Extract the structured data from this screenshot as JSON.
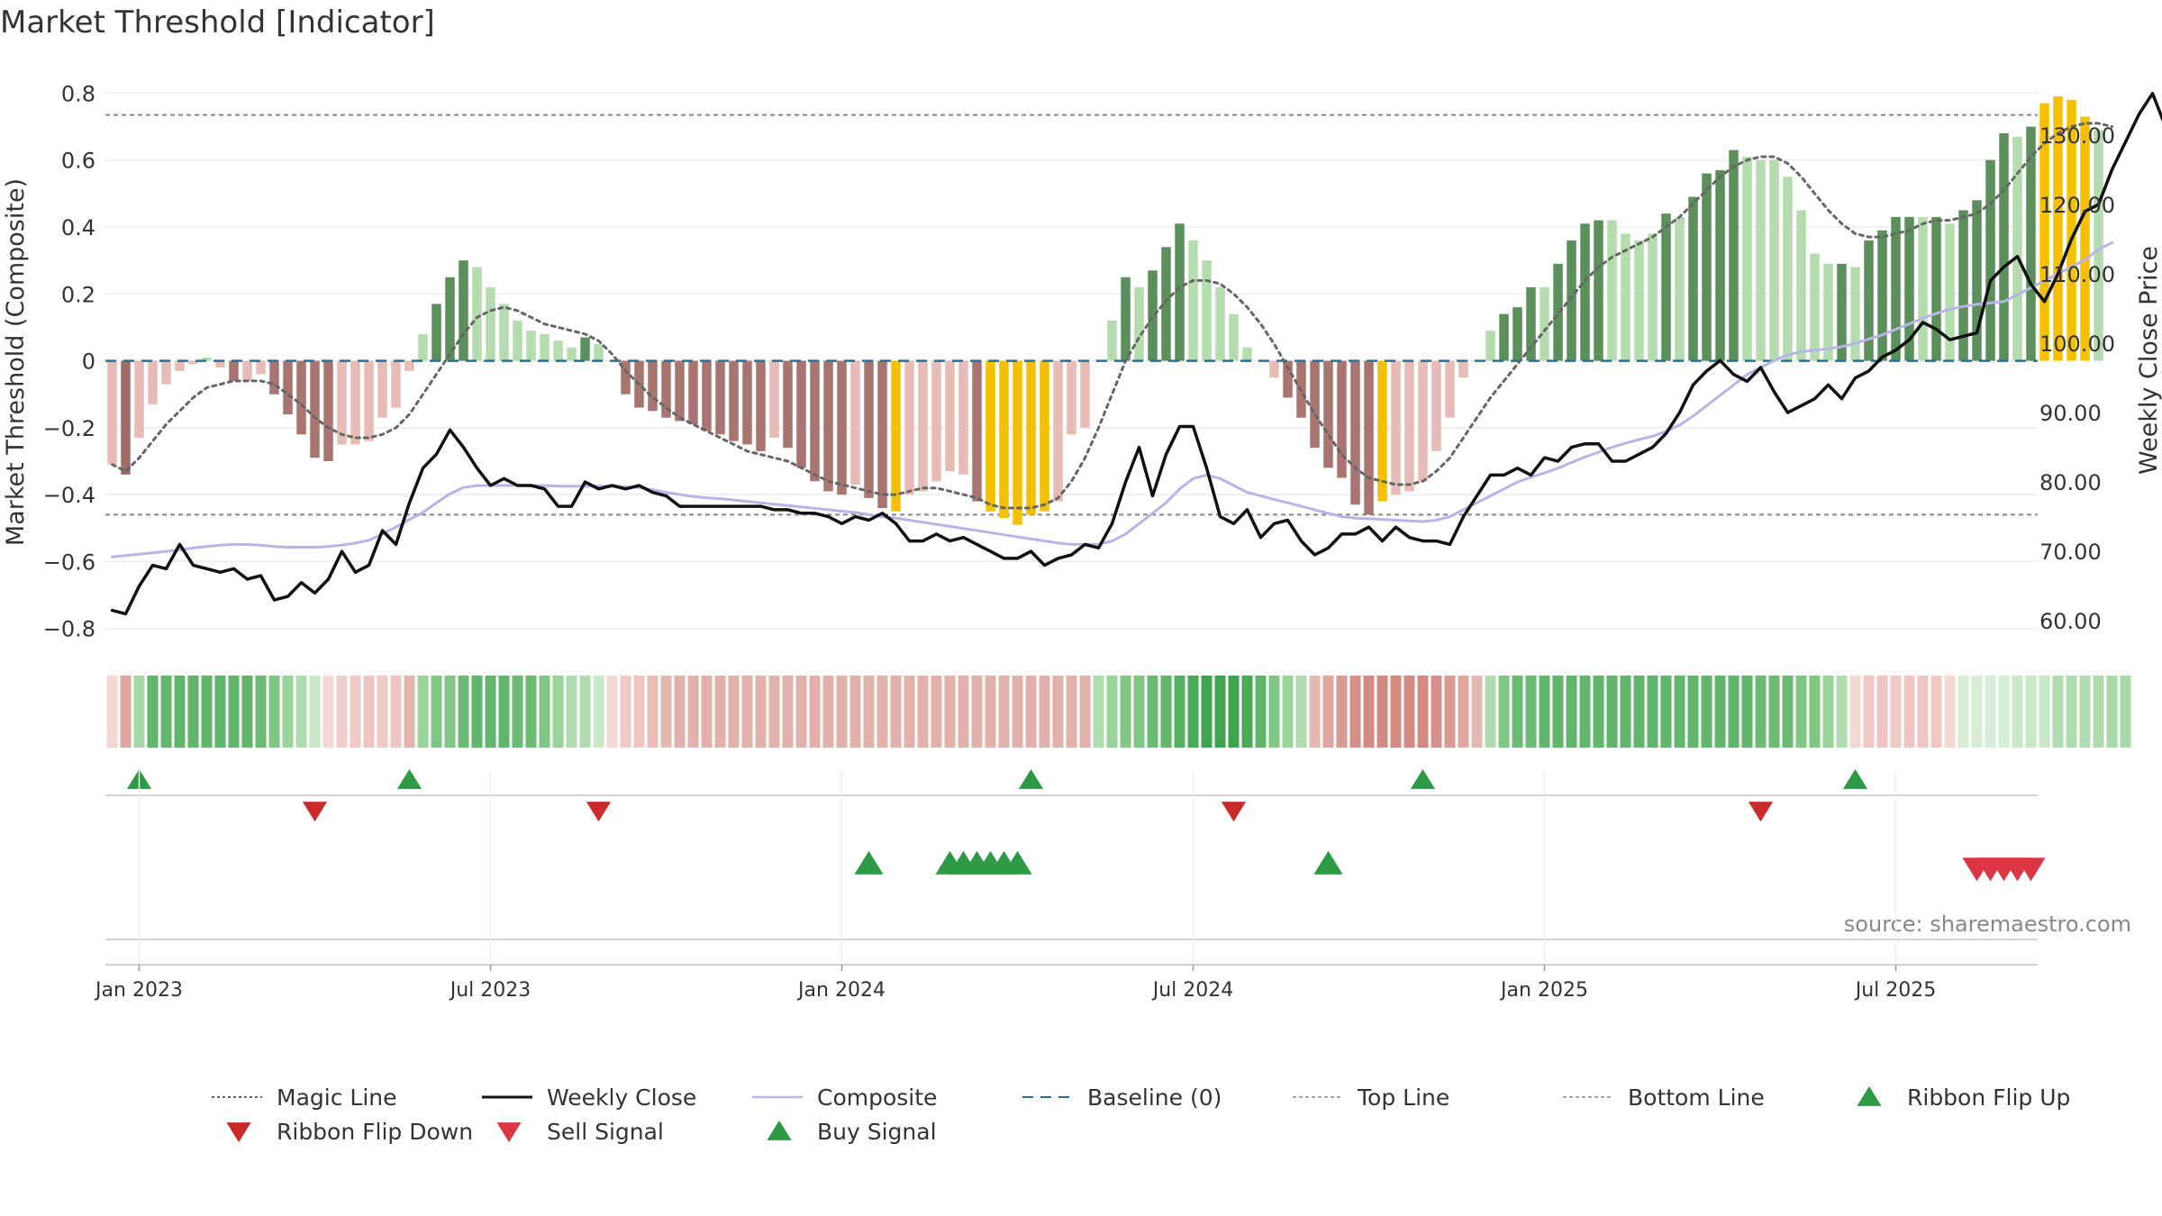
{
  "chart_data": {
    "type": "bar",
    "title": "Market Threshold [Indicator]",
    "ylabel_left": "Market Threshold (Composite)",
    "ylabel_right": "Weekly Close Price",
    "source": "source: sharemaestro.com",
    "xlabel": "",
    "ylim_left": [
      -0.86,
      0.82
    ],
    "ylim_right": [
      56.0,
      137.0
    ],
    "left_ticks": [
      {
        "v": 0.8,
        "label": "0.8"
      },
      {
        "v": 0.6,
        "label": "0.6"
      },
      {
        "v": 0.4,
        "label": "0.4"
      },
      {
        "v": 0.2,
        "label": "0.2"
      },
      {
        "v": 0.0,
        "label": "0"
      },
      {
        "v": -0.2,
        "label": "−0.2"
      },
      {
        "v": -0.4,
        "label": "−0.4"
      },
      {
        "v": -0.6,
        "label": "−0.6"
      },
      {
        "v": -0.8,
        "label": "−0.8"
      }
    ],
    "right_ticks": [
      {
        "v": 130,
        "label": "130.00"
      },
      {
        "v": 120,
        "label": "120.00"
      },
      {
        "v": 110,
        "label": "110.00"
      },
      {
        "v": 100,
        "label": "100.00"
      },
      {
        "v": 90,
        "label": "90.00"
      },
      {
        "v": 80,
        "label": "80.00"
      },
      {
        "v": 70,
        "label": "70.00"
      },
      {
        "v": 60,
        "label": "60.00"
      }
    ],
    "x_ticks": [
      {
        "week": 2,
        "label": "Jan 2023"
      },
      {
        "week": 28,
        "label": "Jul 2023"
      },
      {
        "week": 54,
        "label": "Jan 2024"
      },
      {
        "week": 80,
        "label": "Jul 2024"
      },
      {
        "week": 106,
        "label": "Jan 2025"
      },
      {
        "week": 132,
        "label": "Jul 2025"
      }
    ],
    "top_line": 0.735,
    "bottom_line": -0.46,
    "baseline": 0,
    "week_count": 143,
    "bar_values": [
      -0.31,
      -0.34,
      -0.23,
      -0.13,
      -0.07,
      -0.03,
      -0.01,
      0.01,
      -0.02,
      -0.06,
      -0.06,
      -0.04,
      -0.1,
      -0.16,
      -0.22,
      -0.29,
      -0.3,
      -0.25,
      -0.25,
      -0.24,
      -0.17,
      -0.14,
      -0.03,
      0.08,
      0.17,
      0.25,
      0.3,
      0.28,
      0.22,
      0.17,
      0.12,
      0.09,
      0.08,
      0.06,
      0.04,
      0.07,
      0.05,
      0.0,
      -0.1,
      -0.14,
      -0.15,
      -0.17,
      -0.18,
      -0.19,
      -0.21,
      -0.22,
      -0.24,
      -0.25,
      -0.27,
      -0.23,
      -0.26,
      -0.32,
      -0.36,
      -0.39,
      -0.4,
      -0.37,
      -0.41,
      -0.44,
      -0.45,
      -0.4,
      -0.39,
      -0.36,
      -0.33,
      -0.34,
      -0.42,
      -0.45,
      -0.47,
      -0.49,
      -0.46,
      -0.45,
      -0.42,
      -0.22,
      -0.2,
      0.0,
      0.12,
      0.25,
      0.22,
      0.27,
      0.34,
      0.41,
      0.36,
      0.3,
      0.22,
      0.14,
      0.04,
      0.0,
      -0.05,
      -0.11,
      -0.17,
      -0.26,
      -0.32,
      -0.35,
      -0.43,
      -0.46,
      -0.42,
      -0.4,
      -0.39,
      -0.36,
      -0.27,
      -0.17,
      -0.05,
      0.0,
      0.09,
      0.14,
      0.16,
      0.22,
      0.22,
      0.29,
      0.36,
      0.41,
      0.42,
      0.42,
      0.38,
      0.36,
      0.38,
      0.44,
      0.43,
      0.49,
      0.56,
      0.57,
      0.63,
      0.61,
      0.6,
      0.6,
      0.55,
      0.45,
      0.32,
      0.29,
      0.29,
      0.28,
      0.36,
      0.39,
      0.43,
      0.43,
      0.43,
      0.43,
      0.41,
      0.45,
      0.48,
      0.6,
      0.68,
      0.67,
      0.7,
      0.77,
      0.79,
      0.78,
      0.73,
      0.69
    ],
    "bar_colors": [
      "#e8bcb6",
      "#9e6b66",
      "#e8bcb6",
      "#e8bcb6",
      "#e8bcb6",
      "#e8bcb6",
      "#e8bcb6",
      "#b5dcae",
      "#e8bcb6",
      "#a87570",
      "#e8bcb6",
      "#e8bcb6",
      "#a87570",
      "#a87570",
      "#a87570",
      "#a87570",
      "#a87570",
      "#e8bcb6",
      "#e8bcb6",
      "#e8bcb6",
      "#e8bcb6",
      "#e8bcb6",
      "#e8bcb6",
      "#b5dcae",
      "#5b8f5b",
      "#5b8f5b",
      "#5b8f5b",
      "#b5dcae",
      "#b5dcae",
      "#b5dcae",
      "#b5dcae",
      "#b5dcae",
      "#b5dcae",
      "#b5dcae",
      "#b5dcae",
      "#5b8f5b",
      "#b5dcae",
      "#e8bcb6",
      "#a87570",
      "#a87570",
      "#a87570",
      "#a87570",
      "#a87570",
      "#a87570",
      "#a87570",
      "#a87570",
      "#a87570",
      "#a87570",
      "#a87570",
      "#e8bcb6",
      "#a87570",
      "#a87570",
      "#a87570",
      "#a87570",
      "#a87570",
      "#e8bcb6",
      "#a87570",
      "#a87570",
      "#f5c000",
      "#e8bcb6",
      "#e8bcb6",
      "#e8bcb6",
      "#e8bcb6",
      "#e8bcb6",
      "#a87570",
      "#f5c000",
      "#f5c000",
      "#f5c000",
      "#f5c000",
      "#f5c000",
      "#e8bcb6",
      "#e8bcb6",
      "#e8bcb6",
      "#e8bcb6",
      "#b5dcae",
      "#5b8f5b",
      "#b5dcae",
      "#5b8f5b",
      "#5b8f5b",
      "#5b8f5b",
      "#b5dcae",
      "#b5dcae",
      "#b5dcae",
      "#b5dcae",
      "#b5dcae",
      "#e8bcb6",
      "#e8bcb6",
      "#a87570",
      "#a87570",
      "#a87570",
      "#a87570",
      "#a87570",
      "#a87570",
      "#a87570",
      "#f5c000",
      "#e8bcb6",
      "#e8bcb6",
      "#e8bcb6",
      "#e8bcb6",
      "#e8bcb6",
      "#e8bcb6",
      "#b5dcae",
      "#b5dcae",
      "#5b8f5b",
      "#5b8f5b",
      "#5b8f5b",
      "#b5dcae",
      "#5b8f5b",
      "#5b8f5b",
      "#5b8f5b",
      "#5b8f5b",
      "#b5dcae",
      "#b5dcae",
      "#b5dcae",
      "#b5dcae",
      "#5b8f5b",
      "#b5dcae",
      "#5b8f5b",
      "#5b8f5b",
      "#5b8f5b",
      "#5b8f5b",
      "#b5dcae",
      "#b5dcae",
      "#b5dcae",
      "#b5dcae",
      "#b5dcae",
      "#b5dcae",
      "#b5dcae",
      "#5b8f5b",
      "#b5dcae",
      "#5b8f5b",
      "#5b8f5b",
      "#5b8f5b",
      "#5b8f5b",
      "#b5dcae",
      "#5b8f5b",
      "#b5dcae",
      "#5b8f5b",
      "#5b8f5b",
      "#5b8f5b",
      "#5b8f5b",
      "#b5dcae",
      "#5b8f5b",
      "#f5c000",
      "#f5c000",
      "#f5c000",
      "#f5c000",
      "#b5dcae"
    ],
    "series": [
      {
        "name": "Magic Line",
        "axis": "left",
        "values": [
          -0.31,
          -0.33,
          -0.29,
          -0.24,
          -0.19,
          -0.15,
          -0.11,
          -0.08,
          -0.07,
          -0.06,
          -0.06,
          -0.06,
          -0.07,
          -0.1,
          -0.13,
          -0.17,
          -0.2,
          -0.22,
          -0.23,
          -0.23,
          -0.22,
          -0.2,
          -0.16,
          -0.1,
          -0.04,
          0.02,
          0.08,
          0.13,
          0.15,
          0.16,
          0.15,
          0.13,
          0.11,
          0.1,
          0.09,
          0.08,
          0.06,
          0.02,
          -0.03,
          -0.07,
          -0.11,
          -0.14,
          -0.17,
          -0.19,
          -0.21,
          -0.23,
          -0.25,
          -0.27,
          -0.28,
          -0.29,
          -0.3,
          -0.32,
          -0.34,
          -0.36,
          -0.37,
          -0.38,
          -0.39,
          -0.4,
          -0.4,
          -0.39,
          -0.38,
          -0.38,
          -0.39,
          -0.4,
          -0.41,
          -0.43,
          -0.44,
          -0.44,
          -0.44,
          -0.43,
          -0.41,
          -0.36,
          -0.29,
          -0.2,
          -0.1,
          0.0,
          0.07,
          0.13,
          0.18,
          0.22,
          0.24,
          0.24,
          0.23,
          0.2,
          0.16,
          0.11,
          0.05,
          -0.02,
          -0.09,
          -0.16,
          -0.22,
          -0.28,
          -0.32,
          -0.35,
          -0.36,
          -0.37,
          -0.37,
          -0.36,
          -0.33,
          -0.29,
          -0.23,
          -0.17,
          -0.11,
          -0.06,
          -0.01,
          0.04,
          0.09,
          0.14,
          0.19,
          0.24,
          0.28,
          0.31,
          0.33,
          0.35,
          0.37,
          0.4,
          0.43,
          0.47,
          0.51,
          0.55,
          0.58,
          0.6,
          0.61,
          0.61,
          0.59,
          0.55,
          0.5,
          0.45,
          0.41,
          0.38,
          0.37,
          0.37,
          0.38,
          0.39,
          0.41,
          0.42,
          0.42,
          0.43,
          0.44,
          0.47,
          0.51,
          0.56,
          0.61,
          0.65,
          0.68,
          0.7,
          0.71,
          0.71,
          0.7
        ]
      },
      {
        "name": "Weekly Close",
        "axis": "right",
        "values": [
          61.5,
          61.0,
          65.0,
          68.0,
          67.5,
          71.0,
          68.0,
          67.5,
          67.0,
          67.5,
          66.0,
          66.5,
          63.0,
          63.5,
          65.5,
          64.0,
          66.0,
          70.0,
          67.0,
          68.0,
          73.0,
          71.0,
          77.0,
          82.0,
          84.0,
          87.5,
          85.0,
          82.0,
          79.5,
          80.5,
          79.5,
          79.5,
          79.0,
          76.5,
          76.5,
          80.0,
          79.0,
          79.5,
          79.0,
          79.5,
          78.5,
          78.0,
          76.5,
          76.5,
          76.5,
          76.5,
          76.5,
          76.5,
          76.5,
          76.0,
          76.0,
          75.5,
          75.5,
          75.0,
          74.0,
          75.0,
          74.5,
          75.5,
          74.0,
          71.5,
          71.5,
          72.5,
          71.5,
          72.0,
          71.0,
          70.0,
          69.0,
          69.0,
          70.0,
          68.0,
          69.0,
          69.5,
          71.0,
          70.5,
          74.0,
          80.0,
          85.0,
          78.0,
          84.0,
          88.0,
          88.0,
          82.0,
          75.0,
          74.0,
          76.0,
          72.0,
          74.0,
          74.5,
          71.5,
          69.5,
          70.5,
          72.5,
          72.5,
          73.5,
          71.5,
          73.5,
          72.0,
          71.5,
          71.5,
          71.0,
          75.0,
          78.0,
          81.0,
          81.0,
          82.0,
          81.0,
          83.5,
          83.0,
          85.0,
          85.5,
          85.5,
          83.0,
          83.0,
          84.0,
          85.0,
          87.0,
          90.0,
          94.0,
          96.0,
          97.5,
          95.5,
          94.5,
          96.5,
          93.0,
          90.0,
          91.0,
          92.0,
          94.0,
          92.0,
          95.0,
          96.0,
          98.0,
          99.0,
          100.5,
          103.0,
          102.0,
          100.5,
          101.0,
          101.5,
          109.0,
          111.0,
          112.5,
          108.5,
          106.0,
          110.0,
          115.0,
          119.0,
          120.0,
          125.0,
          129.0,
          133.0,
          136.0,
          131.0,
          129.5
        ]
      },
      {
        "name": "Composite",
        "axis": "right",
        "values": [
          69.2,
          69.4,
          69.6,
          69.8,
          70.0,
          70.2,
          70.5,
          70.7,
          70.9,
          71.0,
          71.0,
          70.9,
          70.7,
          70.6,
          70.6,
          70.6,
          70.7,
          70.9,
          71.2,
          71.6,
          72.5,
          73.5,
          74.6,
          75.6,
          77.0,
          78.3,
          79.2,
          79.5,
          79.5,
          79.5,
          79.5,
          79.5,
          79.5,
          79.4,
          79.4,
          79.4,
          79.4,
          79.4,
          79.3,
          79.2,
          78.9,
          78.5,
          78.2,
          77.9,
          77.7,
          77.6,
          77.4,
          77.2,
          77.0,
          76.8,
          76.6,
          76.4,
          76.2,
          76.0,
          75.8,
          75.6,
          75.3,
          75.0,
          74.8,
          74.5,
          74.2,
          73.9,
          73.6,
          73.3,
          73.0,
          72.7,
          72.4,
          72.1,
          71.8,
          71.5,
          71.2,
          71.0,
          71.0,
          71.0,
          71.5,
          72.5,
          74.0,
          75.5,
          77.0,
          79.0,
          80.5,
          81.0,
          80.5,
          79.5,
          78.5,
          78.0,
          77.5,
          77.0,
          76.5,
          76.0,
          75.5,
          75.0,
          74.8,
          74.7,
          74.6,
          74.5,
          74.4,
          74.3,
          74.5,
          75.0,
          76.0,
          77.0,
          78.0,
          79.0,
          80.0,
          80.7,
          81.3,
          82.0,
          82.8,
          83.6,
          84.3,
          85.0,
          85.6,
          86.1,
          86.6,
          87.3,
          88.2,
          89.5,
          91.0,
          92.5,
          94.0,
          95.5,
          96.5,
          97.5,
          98.3,
          98.8,
          99.0,
          99.2,
          99.5,
          100.0,
          100.6,
          101.2,
          102.0,
          102.8,
          103.6,
          104.3,
          104.9,
          105.3,
          105.6,
          105.8,
          106.0,
          107.0,
          108.0,
          109.0,
          110.0,
          111.0,
          112.0,
          113.5,
          114.5
        ]
      }
    ],
    "ribbon_colors": [
      "#f3d8d4",
      "#e0a7a0",
      "#a9d9a8",
      "#62b66c",
      "#62b66c",
      "#62b66c",
      "#62b66c",
      "#62b66c",
      "#62b66c",
      "#62b66c",
      "#62b66c",
      "#6bbb73",
      "#80c785",
      "#98d39b",
      "#b0ddb0",
      "#c8e8c6",
      "#f3d8d4",
      "#f0cfca",
      "#efc9c4",
      "#eec5c0",
      "#efc9c4",
      "#eec5c0",
      "#e4b4ae",
      "#98d39b",
      "#80c785",
      "#80c785",
      "#6bbb73",
      "#62b66c",
      "#62b66c",
      "#62b66c",
      "#6bbb73",
      "#6bbb73",
      "#80c785",
      "#98d39b",
      "#b0ddb0",
      "#b0ddb0",
      "#c8e8c6",
      "#f3d8d4",
      "#efc9c4",
      "#eec5c0",
      "#eabcb6",
      "#e6b8b2",
      "#e3b1ab",
      "#e3b1ab",
      "#e3b1ab",
      "#e3b1ab",
      "#e3b1ab",
      "#e3b1ab",
      "#e3b1ab",
      "#e3b1ab",
      "#e3b1ab",
      "#e3b1ab",
      "#e3b1ab",
      "#e3b1ab",
      "#e3b1ab",
      "#e3b1ab",
      "#e3b1ab",
      "#e3b1ab",
      "#e3b1ab",
      "#e3b1ab",
      "#e3b1ab",
      "#e3b1ab",
      "#e3b1ab",
      "#e3b1ab",
      "#e3b1ab",
      "#e3b1ab",
      "#e3b1ab",
      "#e3b1ab",
      "#e3b1ab",
      "#e3b1ab",
      "#e3b1ab",
      "#e3b1ab",
      "#e3b1ab",
      "#b0ddb0",
      "#98d39b",
      "#80c785",
      "#80c785",
      "#6bbb73",
      "#62b66c",
      "#56b062",
      "#4aaa58",
      "#3ea54e",
      "#3ea54e",
      "#3ea54e",
      "#4aaa58",
      "#62b66c",
      "#80c785",
      "#98d39b",
      "#b0ddb0",
      "#e6b8b2",
      "#e0a7a0",
      "#d99a93",
      "#d59089",
      "#d28a83",
      "#d28a83",
      "#d28a83",
      "#d28a83",
      "#d28a83",
      "#d59089",
      "#d99a93",
      "#e0a7a0",
      "#e6b8b2",
      "#b0ddb0",
      "#80c785",
      "#6bbb73",
      "#6bbb73",
      "#62b66c",
      "#62b66c",
      "#62b66c",
      "#62b66c",
      "#62b66c",
      "#62b66c",
      "#62b66c",
      "#62b66c",
      "#62b66c",
      "#62b66c",
      "#62b66c",
      "#62b66c",
      "#62b66c",
      "#62b66c",
      "#62b66c",
      "#62b66c",
      "#6bbb73",
      "#6bbb73",
      "#6bbb73",
      "#80c785",
      "#80c785",
      "#98d39b",
      "#b0ddb0",
      "#f3d8d4",
      "#efc9c4",
      "#eec5c0",
      "#efc9c4",
      "#eec5c0",
      "#eec5c0",
      "#efc9c4",
      "#f3d8d4",
      "#d6eed4",
      "#d6eed4",
      "#d6eed4",
      "#d6eed4",
      "#c8e8c6",
      "#c8e8c6",
      "#c8e8c6",
      "#b0ddb0",
      "#b0ddb0",
      "#b0ddb0",
      "#b0ddb0",
      "#a9d9a8",
      "#a9d9a8"
    ],
    "ribbon_flip_up_weeks": [
      2,
      22,
      68,
      97,
      129
    ],
    "ribbon_flip_down_weeks": [
      15,
      36,
      83,
      122
    ],
    "buy_signal_weeks": [
      56,
      62,
      63,
      64,
      65,
      66,
      67,
      90
    ],
    "sell_signal_weeks": [
      138,
      139,
      140,
      141,
      142
    ],
    "legend": [
      {
        "label": "Magic Line",
        "kind": "line",
        "color": "#666666",
        "dash": "3,3",
        "width": 2
      },
      {
        "label": "Weekly Close",
        "kind": "line",
        "color": "#111111",
        "dash": "",
        "width": 3
      },
      {
        "label": "Composite",
        "kind": "line",
        "color": "#b8b4e6",
        "dash": "",
        "width": 2.5
      },
      {
        "label": "Baseline (0)",
        "kind": "line",
        "color": "#2f6d8f",
        "dash": "12,8",
        "width": 2
      },
      {
        "label": "Top Line",
        "kind": "line",
        "color": "#888888",
        "dash": "4,3",
        "width": 1.5
      },
      {
        "label": "Bottom Line",
        "kind": "line",
        "color": "#888888",
        "dash": "4,3",
        "width": 1.5
      },
      {
        "label": "Ribbon Flip Up",
        "kind": "up",
        "color": "#2e9a46"
      },
      {
        "label": "Ribbon Flip Down",
        "kind": "down",
        "color": "#cc2a2a"
      },
      {
        "label": "Sell Signal",
        "kind": "down",
        "color": "#dc3545"
      },
      {
        "label": "Buy Signal",
        "kind": "up",
        "color": "#2e9a46"
      }
    ],
    "colors": {
      "magic_line": "#666666",
      "weekly_close": "#111111",
      "composite": "#b8b4e6",
      "baseline": "#2f6d8f",
      "ref_lines": "#888888",
      "flip_up": "#2e9a46",
      "flip_down": "#cc2a2a",
      "sell": "#dc3545",
      "buy": "#2e9a46"
    }
  }
}
